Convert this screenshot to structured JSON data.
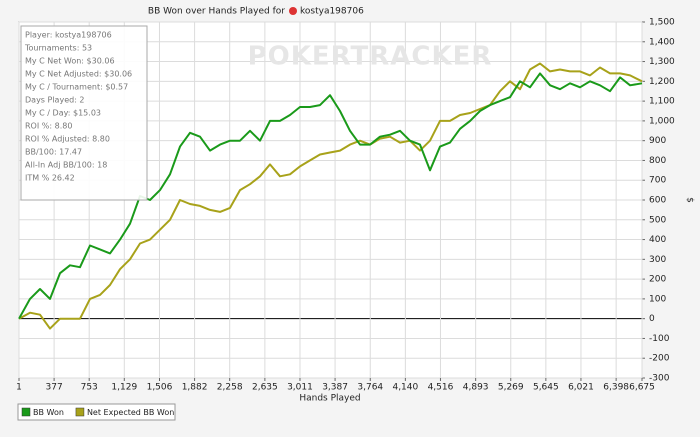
{
  "chart_data": {
    "type": "line",
    "title": "BB Won over Hands Played for",
    "player": "kostya198706",
    "watermark": "POKERTRACKER",
    "x_label": "Hands Played",
    "y_label": "$",
    "info": [
      "Player: kostya198706",
      "Tournaments: 53",
      "My C Net Won: $30.06",
      "My C Net Adjusted: $30.06",
      "My C / Tournament: $0.57",
      "Days Played: 2",
      "My C / Day: $15.03",
      "ROI %: 8.80",
      "ROI % Adjusted: 8.80",
      "BB/100: 17.47",
      "All-In Adj BB/100: 18",
      "ITM % 26.42"
    ],
    "x": [
      1,
      119,
      226,
      333,
      440,
      547,
      654,
      762,
      869,
      976,
      1083,
      1190,
      1297,
      1404,
      1512,
      1619,
      1726,
      1833,
      1940,
      2047,
      2154,
      2261,
      2369,
      2476,
      2583,
      2690,
      2797,
      2904,
      3011,
      3118,
      3226,
      3333,
      3440,
      3547,
      3654,
      3761,
      3868,
      3975,
      4083,
      4190,
      4297,
      4404,
      4511,
      4618,
      4725,
      4833,
      4940,
      5047,
      5154,
      5261,
      5368,
      5475,
      5582,
      5690,
      5797,
      5904,
      6011,
      6118,
      6225,
      6332,
      6440,
      6547,
      6675
    ],
    "series": [
      {
        "name": "BB Won",
        "color": "#1a9a1a",
        "values": [
          0,
          100,
          150,
          100,
          230,
          270,
          260,
          370,
          350,
          330,
          400,
          480,
          620,
          600,
          650,
          730,
          870,
          940,
          920,
          850,
          880,
          900,
          900,
          950,
          900,
          1000,
          1000,
          1030,
          1070,
          1070,
          1080,
          1130,
          1050,
          950,
          880,
          880,
          920,
          930,
          950,
          900,
          880,
          750,
          870,
          890,
          960,
          1000,
          1050,
          1080,
          1100,
          1120,
          1200,
          1170,
          1240,
          1180,
          1160,
          1190,
          1170,
          1200,
          1180,
          1150,
          1220,
          1180,
          1190
        ]
      },
      {
        "name": "Net Expected BB Won",
        "color": "#a8a21a",
        "values": [
          0,
          30,
          20,
          -50,
          0,
          0,
          0,
          100,
          120,
          170,
          250,
          300,
          380,
          400,
          450,
          500,
          600,
          580,
          570,
          550,
          540,
          560,
          650,
          680,
          720,
          780,
          720,
          730,
          770,
          800,
          830,
          840,
          850,
          880,
          900,
          880,
          910,
          920,
          890,
          900,
          850,
          900,
          1000,
          1000,
          1030,
          1040,
          1060,
          1080,
          1150,
          1200,
          1160,
          1260,
          1290,
          1250,
          1260,
          1250,
          1250,
          1230,
          1270,
          1240,
          1240,
          1230,
          1200
        ]
      }
    ],
    "xlim": [
      1,
      6675
    ],
    "xticks": [
      1,
      377,
      753,
      {
        "value": 1129,
        "label": "1,129"
      },
      {
        "value": 1506,
        "label": "1,506"
      },
      {
        "value": 1882,
        "label": "1,882"
      },
      {
        "value": 2258,
        "label": "2,258"
      },
      {
        "value": 2635,
        "label": "2,635"
      },
      {
        "value": 3011,
        "label": "3,011"
      },
      {
        "value": 3387,
        "label": "3,387"
      },
      {
        "value": 3764,
        "label": "3,764"
      },
      {
        "value": 4140,
        "label": "4,140"
      },
      {
        "value": 4516,
        "label": "4,516"
      },
      {
        "value": 4893,
        "label": "4,893"
      },
      {
        "value": 5269,
        "label": "5,269"
      },
      {
        "value": 5645,
        "label": "5,645"
      },
      {
        "value": 6021,
        "label": "6,021"
      },
      {
        "value": 6398,
        "label": "6,398"
      },
      {
        "value": 6675,
        "label": "6,675"
      }
    ],
    "ylim": [
      -300,
      1500
    ],
    "yticks": [
      -300,
      -200,
      -100,
      0,
      100,
      200,
      300,
      400,
      500,
      600,
      700,
      800,
      900,
      {
        "value": 1000,
        "label": "1,000"
      },
      {
        "value": 1100,
        "label": "1,100"
      },
      {
        "value": 1200,
        "label": "1,200"
      },
      {
        "value": 1300,
        "label": "1,300"
      },
      {
        "value": 1400,
        "label": "1,400"
      },
      {
        "value": 1500,
        "label": "1,500"
      }
    ],
    "grid": true
  }
}
